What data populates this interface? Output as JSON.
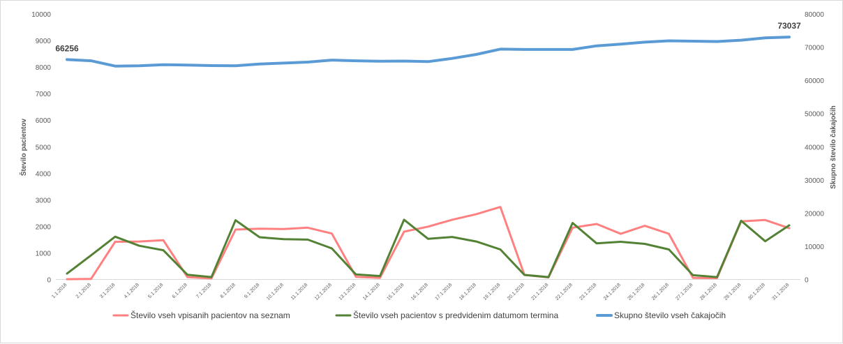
{
  "chart_data": {
    "type": "line",
    "xlabel": "",
    "ylabel": "Število pacientov",
    "y2label": "Skupno število čakajočih",
    "ylim": [
      0,
      10000
    ],
    "y2lim": [
      0,
      80000
    ],
    "yticks": [
      "0",
      "1000",
      "2000",
      "3000",
      "4000",
      "5000",
      "6000",
      "7000",
      "8000",
      "9000",
      "10000"
    ],
    "y2ticks": [
      "0",
      "10000",
      "20000",
      "30000",
      "40000",
      "50000",
      "60000",
      "70000",
      "80000"
    ],
    "grid": false,
    "legend_position": "bottom",
    "categories": [
      "1.1.2018",
      "2.1.2018",
      "3.1.2018",
      "4.1.2018",
      "5.1.2018",
      "6.1.2018",
      "7.1.2018",
      "8.1.2018",
      "9.1.2018",
      "10.1.2018",
      "11.1.2018",
      "12.1.2018",
      "13.1.2018",
      "14.1.2018",
      "15.1.2018",
      "16.1.2018",
      "17.1.2018",
      "18.1.2018",
      "19.1.2018",
      "20.1.2018",
      "21.1.2018",
      "22.1.2018",
      "23.1.2018",
      "24.1.2018",
      "25.1.2018",
      "26.1.2018",
      "27.1.2018",
      "28.1.2018",
      "29.1.2018",
      "30.1.2018",
      "31.1.2018"
    ],
    "series": [
      {
        "name": "Število vseh vpisanih pacientov na seznam",
        "axis": "left",
        "color": "#ff8080",
        "values": [
          10,
          20,
          1420,
          1430,
          1480,
          90,
          40,
          1880,
          1910,
          1900,
          1950,
          1730,
          100,
          60,
          1800,
          1990,
          2250,
          2460,
          2730,
          170,
          80,
          1950,
          2090,
          1720,
          2020,
          1720,
          60,
          50,
          2190,
          2240,
          1930
        ]
      },
      {
        "name": "Število vseh pacientov s predvidenim datumom termina",
        "axis": "left",
        "color": "#548235",
        "values": [
          220,
          910,
          1610,
          1270,
          1100,
          180,
          90,
          2230,
          1590,
          1520,
          1500,
          1170,
          190,
          130,
          2250,
          1530,
          1600,
          1430,
          1130,
          170,
          90,
          2130,
          1360,
          1420,
          1340,
          1130,
          160,
          90,
          2210,
          1440,
          2040
        ]
      },
      {
        "name": "Skupno število vseh čakajočih",
        "axis": "right",
        "color": "#5b9bd5",
        "values": [
          66256,
          65900,
          64300,
          64400,
          64700,
          64600,
          64450,
          64400,
          64900,
          65200,
          65500,
          66100,
          65900,
          65750,
          65800,
          65650,
          66600,
          67800,
          69400,
          69300,
          69300,
          69300,
          70400,
          70900,
          71500,
          71900,
          71800,
          71700,
          72100,
          72800,
          73037
        ]
      }
    ],
    "data_labels": [
      {
        "series": 2,
        "index": 0,
        "text": "66256"
      },
      {
        "series": 2,
        "index": 30,
        "text": "73037"
      }
    ]
  }
}
